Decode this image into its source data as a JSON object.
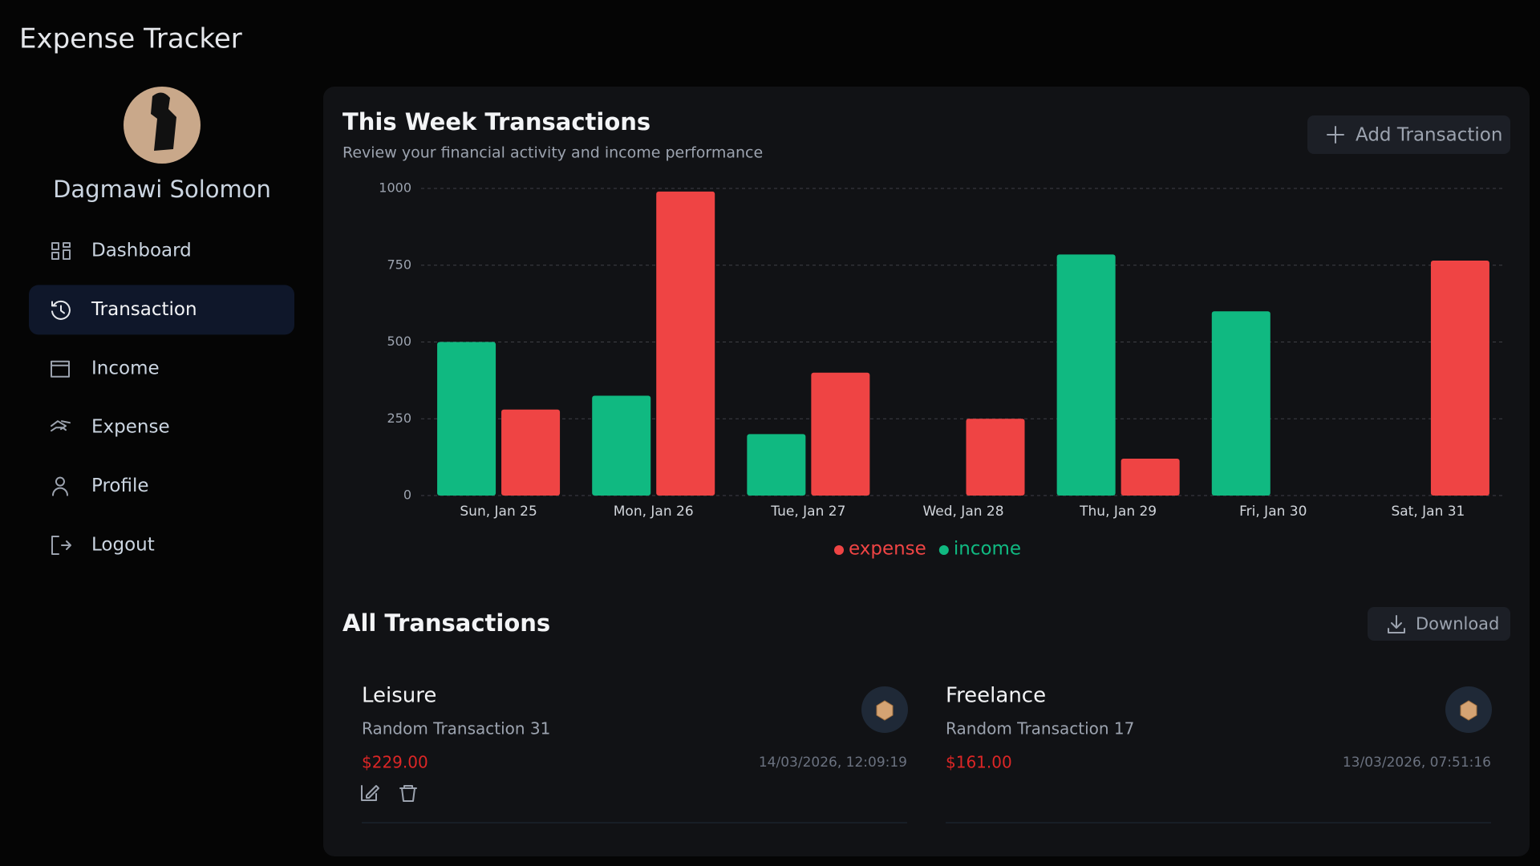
{
  "app_title": "Expense Tracker",
  "user": {
    "name": "Dagmawi Solomon"
  },
  "nav": [
    {
      "label": "Dashboard"
    },
    {
      "label": "Transaction",
      "active": true
    },
    {
      "label": "Income"
    },
    {
      "label": "Expense"
    },
    {
      "label": "Profile"
    },
    {
      "label": "Logout"
    }
  ],
  "chart_section": {
    "title": "This Week Transactions",
    "subtitle": "Review your financial activity and income performance",
    "button": "Add Transaction"
  },
  "chart_data": {
    "type": "bar",
    "categories": [
      "Sun, Jan 25",
      "Mon, Jan 26",
      "Tue, Jan 27",
      "Wed, Jan 28",
      "Thu, Jan 29",
      "Fri, Jan 30",
      "Sat, Jan 31"
    ],
    "series": [
      {
        "name": "expense",
        "color": "#ef4444",
        "values": [
          280,
          990,
          400,
          250,
          120,
          0,
          765
        ]
      },
      {
        "name": "income",
        "color": "#10b981",
        "values": [
          500,
          325,
          200,
          0,
          785,
          600,
          0
        ]
      }
    ],
    "ylim": [
      0,
      1000
    ],
    "yticks": [
      0,
      250,
      500,
      750,
      1000
    ],
    "grid": true,
    "legend": "bottom"
  },
  "transactions_section": {
    "title": "All Transactions",
    "button": "Download"
  },
  "transactions": [
    {
      "category": "Leisure",
      "description": "Random Transaction 31",
      "amount": "$229.00",
      "date": "14/03/2026, 12:09:19"
    },
    {
      "category": "Freelance",
      "description": "Random Transaction 17",
      "amount": "$161.00",
      "date": "13/03/2026, 07:51:16"
    }
  ]
}
